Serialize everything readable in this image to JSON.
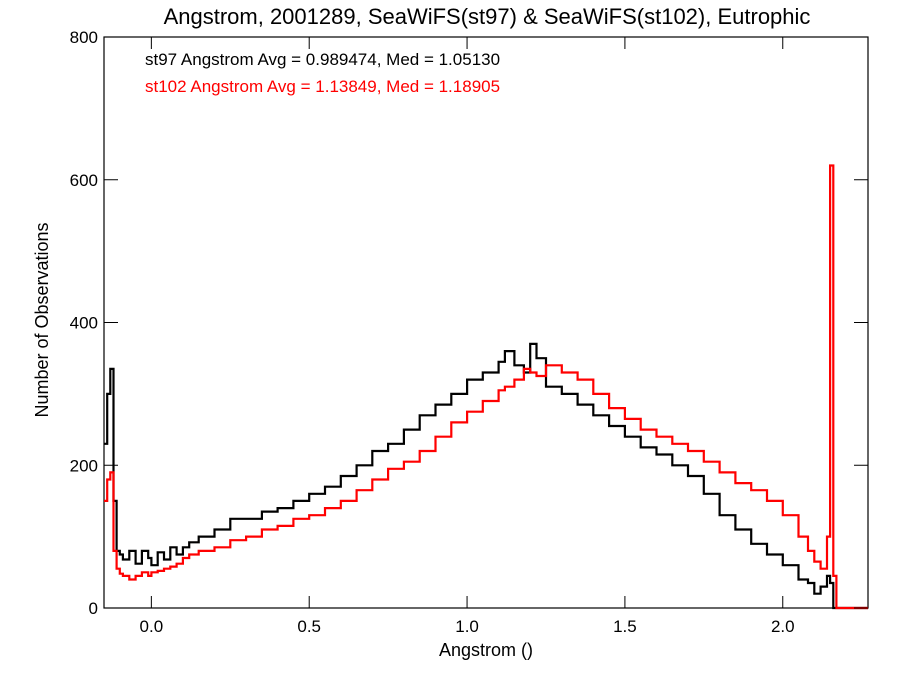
{
  "chart_data": {
    "type": "line",
    "title": "Angstrom, 2001289, SeaWiFS(st97) & SeaWiFS(st102), Eutrophic",
    "xlabel": "Angstrom ()",
    "ylabel": "Number of Observations",
    "xlim": [
      -0.15,
      2.27
    ],
    "ylim": [
      0,
      800
    ],
    "xticks": [
      {
        "value": 0.0,
        "label": "0.0"
      },
      {
        "value": 0.5,
        "label": "0.5"
      },
      {
        "value": 1.0,
        "label": "1.0"
      },
      {
        "value": 1.5,
        "label": "1.5"
      },
      {
        "value": 2.0,
        "label": "2.0"
      }
    ],
    "yticks": [
      {
        "value": 0,
        "label": "0"
      },
      {
        "value": 200,
        "label": "200"
      },
      {
        "value": 400,
        "label": "400"
      },
      {
        "value": 600,
        "label": "600"
      },
      {
        "value": 800,
        "label": "800"
      }
    ],
    "grid": false,
    "step": true,
    "annotations": [
      {
        "text": "st97 Angstrom Avg = 0.989474, Med = 1.05130",
        "color": "#000000"
      },
      {
        "text": "st102 Angstrom Avg = 1.13849, Med = 1.18905",
        "color": "#ff0000"
      }
    ],
    "series": [
      {
        "color": "#000000",
        "x": [
          -0.15,
          -0.14,
          -0.13,
          -0.12,
          -0.11,
          -0.1,
          -0.09,
          -0.07,
          -0.05,
          -0.03,
          -0.01,
          0.0,
          0.02,
          0.04,
          0.06,
          0.08,
          0.1,
          0.12,
          0.15,
          0.2,
          0.25,
          0.3,
          0.35,
          0.4,
          0.45,
          0.5,
          0.55,
          0.6,
          0.65,
          0.7,
          0.75,
          0.8,
          0.85,
          0.9,
          0.95,
          1.0,
          1.05,
          1.1,
          1.12,
          1.15,
          1.18,
          1.2,
          1.22,
          1.25,
          1.3,
          1.35,
          1.4,
          1.45,
          1.5,
          1.55,
          1.6,
          1.65,
          1.7,
          1.75,
          1.8,
          1.85,
          1.9,
          1.95,
          2.0,
          2.05,
          2.08,
          2.1,
          2.12,
          2.14,
          2.15,
          2.16,
          2.17,
          2.2,
          2.27
        ],
        "y": [
          230,
          300,
          335,
          150,
          80,
          75,
          68,
          80,
          62,
          80,
          70,
          60,
          78,
          68,
          85,
          75,
          85,
          92,
          100,
          110,
          125,
          125,
          135,
          140,
          150,
          160,
          170,
          185,
          200,
          220,
          230,
          250,
          270,
          285,
          300,
          320,
          330,
          345,
          360,
          340,
          330,
          370,
          350,
          310,
          300,
          285,
          270,
          255,
          240,
          225,
          215,
          200,
          185,
          160,
          130,
          110,
          90,
          75,
          60,
          40,
          35,
          20,
          30,
          45,
          35,
          0,
          0,
          0,
          0
        ]
      },
      {
        "color": "#ff0000",
        "x": [
          -0.15,
          -0.14,
          -0.13,
          -0.12,
          -0.11,
          -0.1,
          -0.09,
          -0.07,
          -0.05,
          -0.03,
          -0.01,
          0.0,
          0.02,
          0.04,
          0.06,
          0.08,
          0.1,
          0.12,
          0.15,
          0.2,
          0.25,
          0.3,
          0.35,
          0.4,
          0.45,
          0.5,
          0.55,
          0.6,
          0.65,
          0.7,
          0.75,
          0.8,
          0.85,
          0.9,
          0.95,
          1.0,
          1.05,
          1.1,
          1.12,
          1.15,
          1.18,
          1.2,
          1.22,
          1.25,
          1.3,
          1.35,
          1.4,
          1.45,
          1.5,
          1.55,
          1.6,
          1.65,
          1.7,
          1.75,
          1.8,
          1.85,
          1.9,
          1.95,
          2.0,
          2.05,
          2.08,
          2.1,
          2.12,
          2.14,
          2.15,
          2.16,
          2.17,
          2.2,
          2.27
        ],
        "y": [
          150,
          180,
          190,
          80,
          55,
          48,
          45,
          40,
          45,
          50,
          45,
          50,
          52,
          55,
          58,
          62,
          70,
          75,
          80,
          85,
          95,
          100,
          110,
          115,
          125,
          130,
          140,
          150,
          165,
          180,
          195,
          205,
          220,
          240,
          260,
          275,
          290,
          305,
          310,
          320,
          335,
          330,
          325,
          340,
          330,
          320,
          300,
          280,
          265,
          250,
          240,
          230,
          220,
          205,
          190,
          175,
          165,
          150,
          130,
          100,
          80,
          65,
          55,
          100,
          620,
          45,
          0,
          0,
          0
        ]
      }
    ]
  }
}
